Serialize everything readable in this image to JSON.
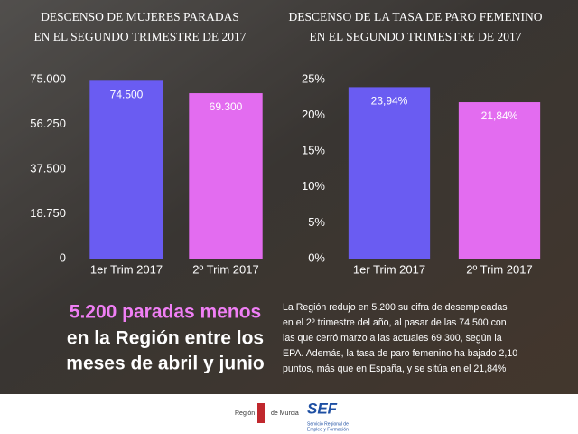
{
  "chart_data": [
    {
      "type": "bar",
      "title": [
        "DESCENSO DE MUJERES PARADAS",
        "EN EL SEGUNDO TRIMESTRE DE 2017"
      ],
      "categories": [
        "1er Trim 2017",
        "2º Trim 2017"
      ],
      "values": [
        74500,
        69300
      ],
      "value_labels": [
        "74.500",
        "69.300"
      ],
      "colors": [
        "#6a5cf2",
        "#e36cf0"
      ],
      "ylim": [
        0,
        75000
      ],
      "yticks": [
        0,
        {
          "value": 18750,
          "label": "18.750"
        },
        {
          "value": 37500,
          "label": "37.500"
        },
        {
          "value": 56250,
          "label": "56.250"
        },
        {
          "value": 75000,
          "label": "75.000"
        }
      ]
    },
    {
      "type": "bar",
      "title": [
        "DESCENSO DE LA TASA DE PARO FEMENINO",
        "EN EL SEGUNDO TRIMESTRE DE 2017"
      ],
      "categories": [
        "1er Trim 2017",
        "2º Trim 2017"
      ],
      "values": [
        23.94,
        21.84
      ],
      "value_labels": [
        "23,94%",
        "21,84%"
      ],
      "colors": [
        "#6a5cf2",
        "#e36cf0"
      ],
      "ylim": [
        0,
        25
      ],
      "yticks": [
        {
          "value": 0,
          "label": "0%"
        },
        {
          "value": 5,
          "label": "5%"
        },
        {
          "value": 10,
          "label": "10%"
        },
        {
          "value": 15,
          "label": "15%"
        },
        {
          "value": 20,
          "label": "20%"
        },
        {
          "value": 25,
          "label": "25%"
        }
      ]
    }
  ],
  "headline": [
    "5.200 paradas menos",
    "en la Región entre los",
    "meses de abril y junio"
  ],
  "body": [
    "La Región redujo en 5.200 su cifra de desempleadas",
    "en el 2º trimestre del año, al pasar de las 74.500 con",
    "las que cerró marzo a las actuales 69.300, según la",
    "EPA. Además, la tasa de paro femenino ha bajado 2,10",
    "puntos, más que en España, y se sitúa en el 21,84%"
  ],
  "footer": {
    "region": "Región",
    "murcia": "de Murcia",
    "sef": "SEF",
    "sef_line1": "Servicio Regional de",
    "sef_line2": "Empleo y Formación"
  }
}
